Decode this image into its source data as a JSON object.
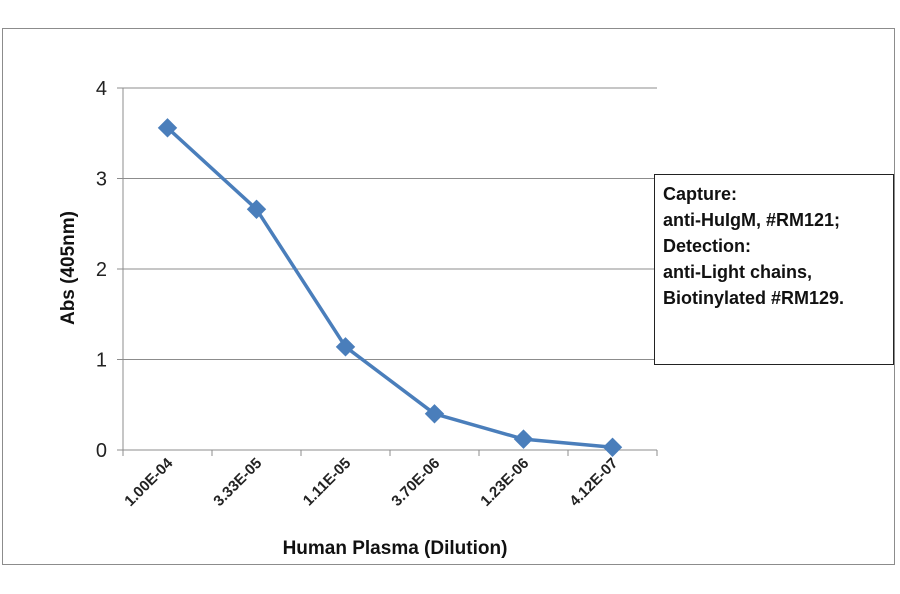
{
  "chart_data": {
    "type": "line",
    "categories": [
      "1.00E-04",
      "3.33E-05",
      "1.11E-05",
      "3.70E-06",
      "1.23E-06",
      "4.12E-07"
    ],
    "series": [
      {
        "values": [
          3.56,
          2.66,
          1.14,
          0.4,
          0.12,
          0.03
        ]
      }
    ],
    "xlabel": "Human Plasma (Dilution)",
    "ylabel": "Abs (405nm)",
    "ylim": [
      0,
      4
    ],
    "yticks": [
      0,
      1,
      2,
      3,
      4
    ],
    "ytick_labels": [
      "0",
      "1",
      "2",
      "3",
      "4"
    ],
    "grid": "horizontal",
    "marker": "diamond",
    "annotation": [
      "Capture:",
      "anti-HuIgM, #RM121;",
      "Detection:",
      "anti-Light chains,",
      "Biotinylated #RM129."
    ]
  },
  "colors": {
    "series": "#4a7ebb",
    "grid": "#8c8c8c",
    "frame": "#8c8c8c"
  }
}
